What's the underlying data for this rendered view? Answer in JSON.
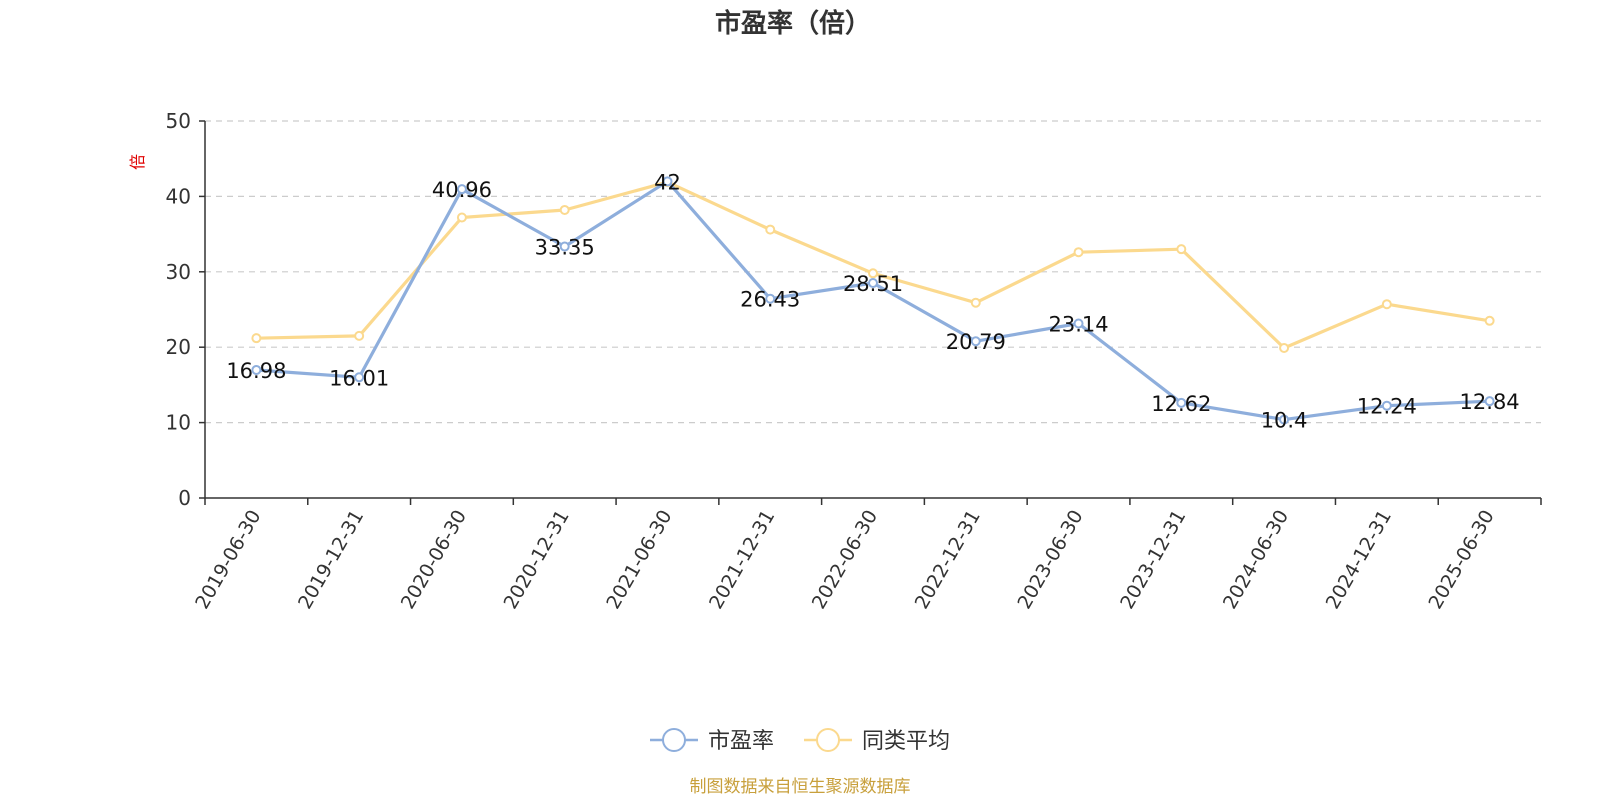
{
  "chart_data": {
    "type": "line",
    "title": "市盈率（倍）",
    "ylabel": "倍",
    "ylim": [
      0,
      50
    ],
    "yticks": [
      0,
      10,
      20,
      30,
      40,
      50
    ],
    "grid": true,
    "legend_position": "bottom",
    "categories": [
      "2019-06-30",
      "2019-12-31",
      "2020-06-30",
      "2020-12-31",
      "2021-06-30",
      "2021-12-31",
      "2022-06-30",
      "2022-12-31",
      "2023-06-30",
      "2023-12-31",
      "2024-06-30",
      "2024-12-31",
      "2025-06-30"
    ],
    "series": [
      {
        "name": "市盈率",
        "color": "#8eaedc",
        "values": [
          16.98,
          16.01,
          40.96,
          33.35,
          42,
          26.43,
          28.51,
          20.79,
          23.14,
          12.62,
          10.4,
          12.24,
          12.84
        ],
        "labels": [
          "16.98",
          "16.01",
          "40.96",
          "33.35",
          "42",
          "26.43",
          "28.51",
          "20.79",
          "23.14",
          "12.62",
          "10.4",
          "12.24",
          "12.84"
        ]
      },
      {
        "name": "同类平均",
        "color": "#fbd98e",
        "values": [
          21.2,
          21.5,
          37.2,
          38.2,
          41.9,
          35.6,
          29.8,
          25.9,
          32.6,
          33.0,
          19.9,
          25.7,
          23.5
        ]
      }
    ],
    "source": "制图数据来自恒生聚源数据库"
  }
}
